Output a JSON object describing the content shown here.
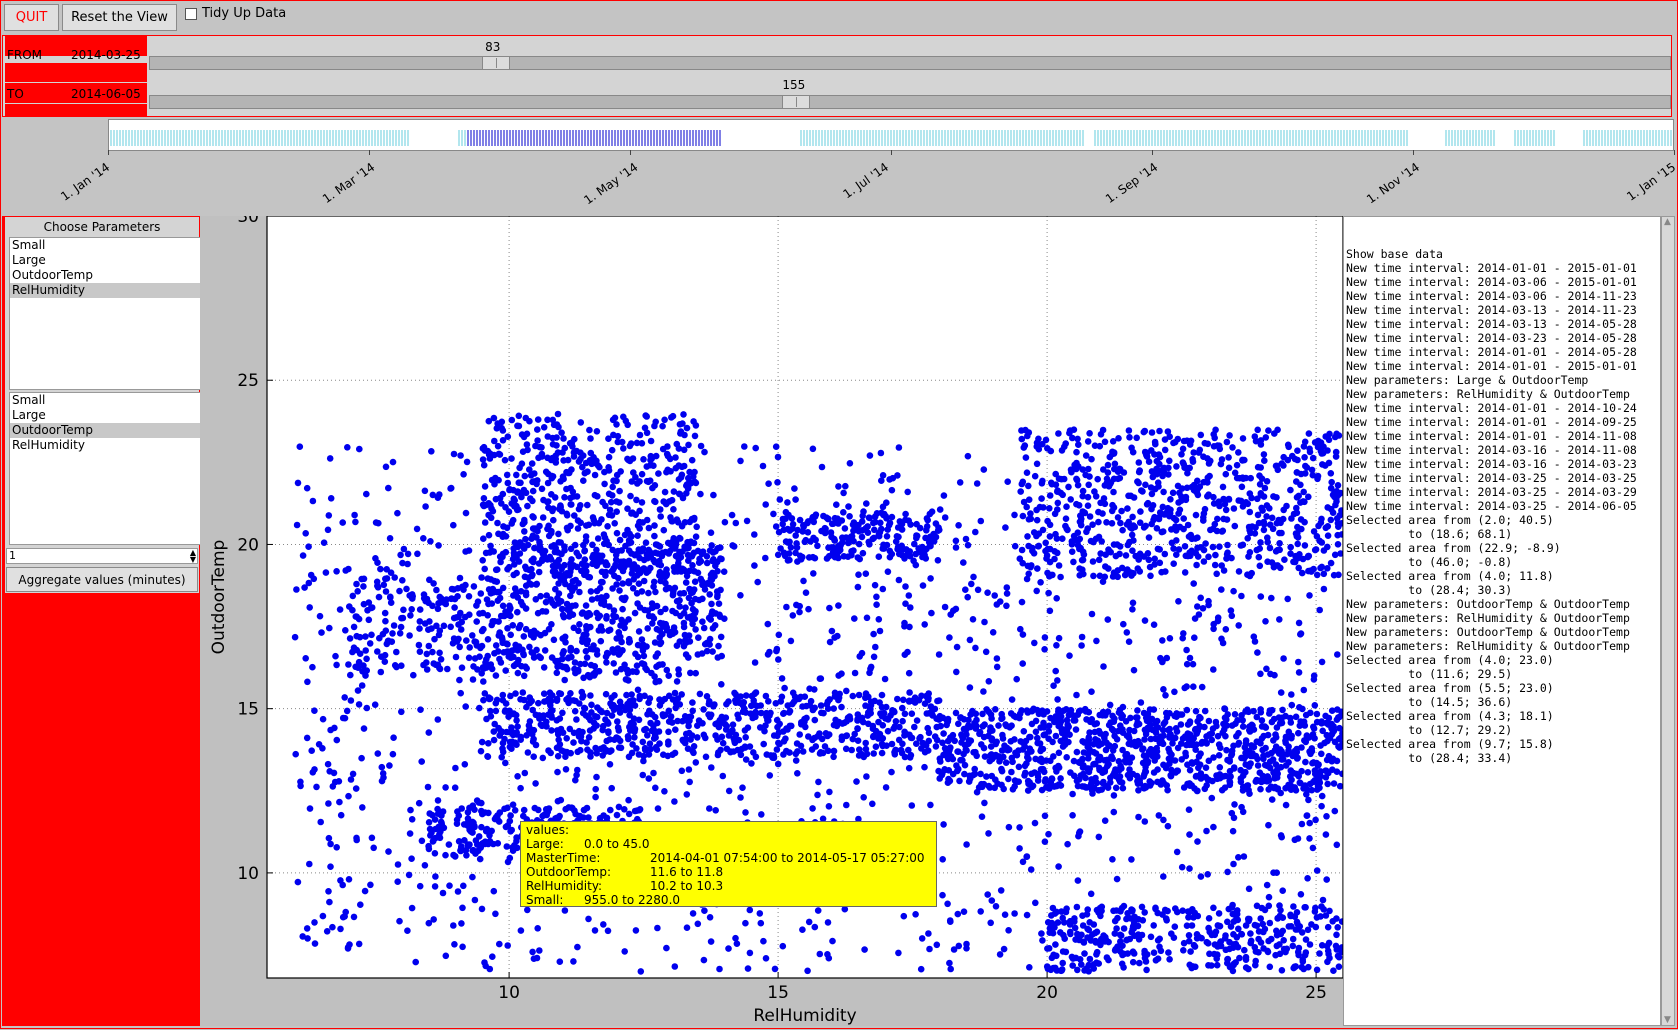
{
  "toolbar": {
    "quit_label": "QUIT",
    "reset_label": "Reset the View",
    "tidy_label": "Tidy Up Data",
    "tidy_checked": false
  },
  "range": {
    "from_label": "FROM",
    "from_date": "2014-03-25",
    "from_value": "83",
    "to_label": "TO",
    "to_date": "2014-06-05",
    "to_value": "155",
    "slider_min": 0,
    "slider_max": 365
  },
  "timeline": {
    "ticks": [
      "1. Jan '14",
      "1. Mar '14",
      "1. May '14",
      "1. Jul '14",
      "1. Sep '14",
      "1. Nov '14",
      "1. Jan '15"
    ],
    "selected_color": "#0000cc",
    "unselected_color": "#66ccdd"
  },
  "params": {
    "title": "Choose Parameters",
    "list1": [
      "Small",
      "Large",
      "OutdoorTemp",
      "RelHumidity"
    ],
    "list1_selected": "RelHumidity",
    "list2": [
      "Small",
      "Large",
      "OutdoorTemp",
      "RelHumidity"
    ],
    "list2_selected": "OutdoorTemp",
    "aggregate_value": "1",
    "aggregate_label": "Aggregate values (minutes)"
  },
  "chart_data": {
    "type": "scatter",
    "xlabel": "RelHumidity",
    "ylabel": "OutdoorTemp",
    "xlim": [
      5.5,
      25.5
    ],
    "ylim": [
      6.8,
      30
    ],
    "xticks": [
      10,
      15,
      20,
      25
    ],
    "yticks": [
      10,
      15,
      20,
      25,
      30
    ],
    "grid": true,
    "marker_color": "#0000ee",
    "clusters": [
      {
        "x": [
          9.5,
          13.5
        ],
        "y": [
          19,
          24
        ],
        "n": 500
      },
      {
        "x": [
          10,
          14
        ],
        "y": [
          16,
          20
        ],
        "n": 500
      },
      {
        "x": [
          9.5,
          18
        ],
        "y": [
          13.5,
          15.5
        ],
        "n": 600
      },
      {
        "x": [
          18,
          25.5
        ],
        "y": [
          12.5,
          15
        ],
        "n": 900
      },
      {
        "x": [
          19.5,
          25.5
        ],
        "y": [
          19,
          23.5
        ],
        "n": 650
      },
      {
        "x": [
          15,
          18
        ],
        "y": [
          19.5,
          21
        ],
        "n": 200
      },
      {
        "x": [
          20,
          25.5
        ],
        "y": [
          7,
          9
        ],
        "n": 350
      },
      {
        "x": [
          7,
          10
        ],
        "y": [
          16,
          19
        ],
        "n": 200
      },
      {
        "x": [
          8.5,
          12.5
        ],
        "y": [
          10.5,
          12
        ],
        "n": 250
      },
      {
        "x": [
          6,
          25.5
        ],
        "y": [
          7,
          23
        ],
        "n": 1400
      }
    ]
  },
  "tooltip": {
    "header": "values:",
    "rows": [
      {
        "name": "Large:",
        "value": "0.0 to 45.0"
      },
      {
        "name": "MasterTime:",
        "value": "2014-04-01 07:54:00 to 2014-05-17 05:27:00"
      },
      {
        "name": "OutdoorTemp:",
        "value": "11.6 to 11.8"
      },
      {
        "name": "RelHumidity:",
        "value": "10.2 to 10.3"
      },
      {
        "name": "Small:",
        "value": "955.0 to 2280.0"
      }
    ]
  },
  "log": [
    "Show base data",
    "New time interval: 2014-01-01 - 2015-01-01",
    "New time interval: 2014-03-06 - 2015-01-01",
    "New time interval: 2014-03-06 - 2014-11-23",
    "New time interval: 2014-03-13 - 2014-11-23",
    "New time interval: 2014-03-13 - 2014-05-28",
    "New time interval: 2014-03-23 - 2014-05-28",
    "New time interval: 2014-01-01 - 2014-05-28",
    "New time interval: 2014-01-01 - 2015-01-01",
    "New parameters: Large & OutdoorTemp",
    "New parameters: RelHumidity & OutdoorTemp",
    "New time interval: 2014-01-01 - 2014-10-24",
    "New time interval: 2014-01-01 - 2014-09-25",
    "New time interval: 2014-01-01 - 2014-11-08",
    "New time interval: 2014-03-16 - 2014-11-08",
    "New time interval: 2014-03-16 - 2014-03-23",
    "New time interval: 2014-03-25 - 2014-03-25",
    "New time interval: 2014-03-25 - 2014-03-29",
    "New time interval: 2014-03-25 - 2014-06-05",
    "Selected area from (2.0; 40.5)",
    "         to (18.6; 68.1)",
    "Selected area from (22.9; -8.9)",
    "         to (46.0; -0.8)",
    "Selected area from (4.0; 11.8)",
    "         to (28.4; 30.3)",
    "New parameters: OutdoorTemp & OutdoorTemp",
    "New parameters: RelHumidity & OutdoorTemp",
    "New parameters: OutdoorTemp & OutdoorTemp",
    "New parameters: RelHumidity & OutdoorTemp",
    "Selected area from (4.0; 23.0)",
    "         to (11.6; 29.5)",
    "Selected area from (5.5; 23.0)",
    "         to (14.5; 36.6)",
    "Selected area from (4.3; 18.1)",
    "         to (12.7; 29.2)",
    "Selected area from (9.7; 15.8)",
    "         to (28.4; 33.4)"
  ]
}
